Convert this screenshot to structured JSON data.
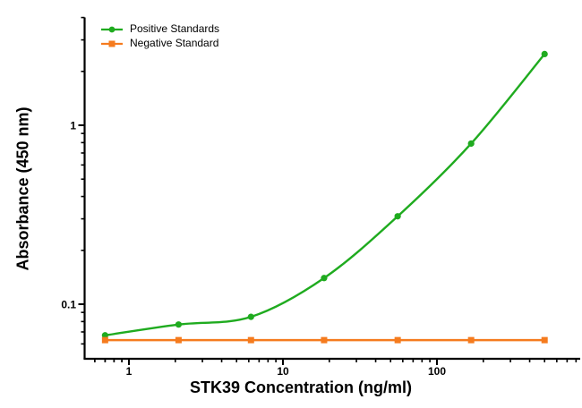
{
  "chart_data": {
    "type": "line",
    "title": "",
    "xlabel": "STK39 Concentration (ng/ml)",
    "ylabel": "Absorbance (450 nm)",
    "x_scale": "log",
    "y_scale": "log",
    "xlim": [
      0.52,
      850
    ],
    "ylim": [
      0.05,
      4
    ],
    "x_major_ticks": [
      1,
      10,
      100
    ],
    "x_major_tick_labels": [
      "1",
      "10",
      "100"
    ],
    "y_major_ticks": [
      0.1,
      1
    ],
    "y_major_tick_labels": [
      "0.1",
      "1"
    ],
    "grid": false,
    "legend_position": "top-left-inside",
    "x": [
      0.7,
      2.1,
      6.2,
      18.5,
      55.6,
      166.7,
      500
    ],
    "series": [
      {
        "name": "Positive Standards",
        "color": "#1fab1f",
        "marker": "circle",
        "line": "smooth",
        "values": [
          0.067,
          0.077,
          0.085,
          0.14,
          0.31,
          0.79,
          2.5
        ]
      },
      {
        "name": "Negative Standard",
        "color": "#f57b1e",
        "marker": "square",
        "line": "straight",
        "values": [
          0.063,
          0.063,
          0.063,
          0.063,
          0.063,
          0.063,
          0.063
        ]
      }
    ],
    "colors": {
      "axis": "#000000",
      "background": "#ffffff"
    }
  }
}
